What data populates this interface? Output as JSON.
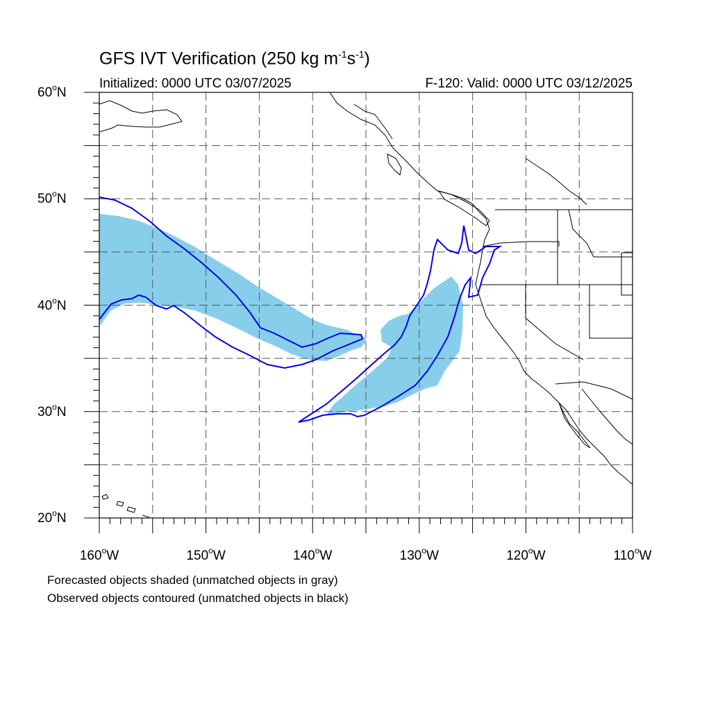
{
  "title": {
    "main": "GFS IVT Verification (250 kg m",
    "exp1": "-1",
    "mid": "s",
    "exp2": "-1",
    "close": ")"
  },
  "subtitle_left": "Initialized: 0000 UTC 03/07/2025",
  "subtitle_right": "F-120: Valid: 0000 UTC 03/12/2025",
  "map": {
    "lon_range": [
      -160,
      -110
    ],
    "lat_range": [
      20,
      60
    ],
    "lat_labels": [
      {
        "lat": 60,
        "num": "60",
        "deg": "o",
        "hemi": "N"
      },
      {
        "lat": 50,
        "num": "50",
        "deg": "o",
        "hemi": "N"
      },
      {
        "lat": 40,
        "num": "40",
        "deg": "o",
        "hemi": "N"
      },
      {
        "lat": 30,
        "num": "30",
        "deg": "o",
        "hemi": "N"
      },
      {
        "lat": 20,
        "num": "20",
        "deg": "o",
        "hemi": "N"
      }
    ],
    "lon_labels": [
      {
        "lon": -160,
        "num": "160",
        "deg": "o",
        "hemi": "W"
      },
      {
        "lon": -150,
        "num": "150",
        "deg": "o",
        "hemi": "W"
      },
      {
        "lon": -140,
        "num": "140",
        "deg": "o",
        "hemi": "W"
      },
      {
        "lon": -130,
        "num": "130",
        "deg": "o",
        "hemi": "W"
      },
      {
        "lon": -120,
        "num": "120",
        "deg": "o",
        "hemi": "W"
      },
      {
        "lon": -110,
        "num": "110",
        "deg": "o",
        "hemi": "W"
      }
    ],
    "grid_style": "dashed",
    "forecast_fill_color": "#87ceeb",
    "observed_contour_color": "#0000ee",
    "coast_color": "#000000"
  },
  "notes": [
    "Forecasted objects shaded (unmatched objects in gray)",
    "Observed objects contoured (unmatched objects in black)"
  ]
}
